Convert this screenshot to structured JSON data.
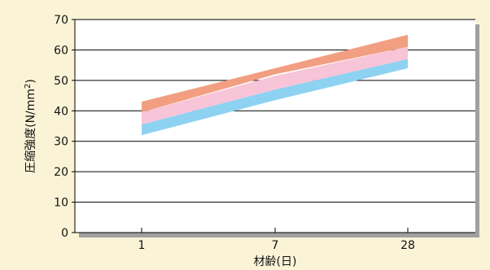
{
  "chart_data": {
    "type": "area",
    "xlabel": "材齢(日)",
    "ylabel": "圧縮強度(N/mm²)",
    "ylabel_parts": [
      "圧縮強度(N/mm",
      "2",
      ")"
    ],
    "categories": [
      "1",
      "7",
      "28"
    ],
    "ylim": [
      0,
      70
    ],
    "yticks": [
      0,
      10,
      20,
      30,
      40,
      50,
      60,
      70
    ],
    "grid": true,
    "bands": [
      {
        "lower": [
          39.5,
          52.0,
          61.0
        ],
        "upper": [
          43.0,
          54.0,
          65.0
        ],
        "color": "#f19f80"
      },
      {
        "lower": [
          35.5,
          47.0,
          57.0
        ],
        "upper": [
          39.5,
          51.5,
          61.0
        ],
        "color": "#f8c4d8"
      },
      {
        "lower": [
          32.0,
          43.5,
          54.0
        ],
        "upper": [
          35.5,
          47.0,
          57.0
        ],
        "color": "#8ed2f2"
      }
    ]
  },
  "colors": {
    "page_background": "#fbf3d6",
    "plot_background": "#ffffff",
    "grid": "#000000",
    "plot_shadow": "#a0a0a0"
  }
}
